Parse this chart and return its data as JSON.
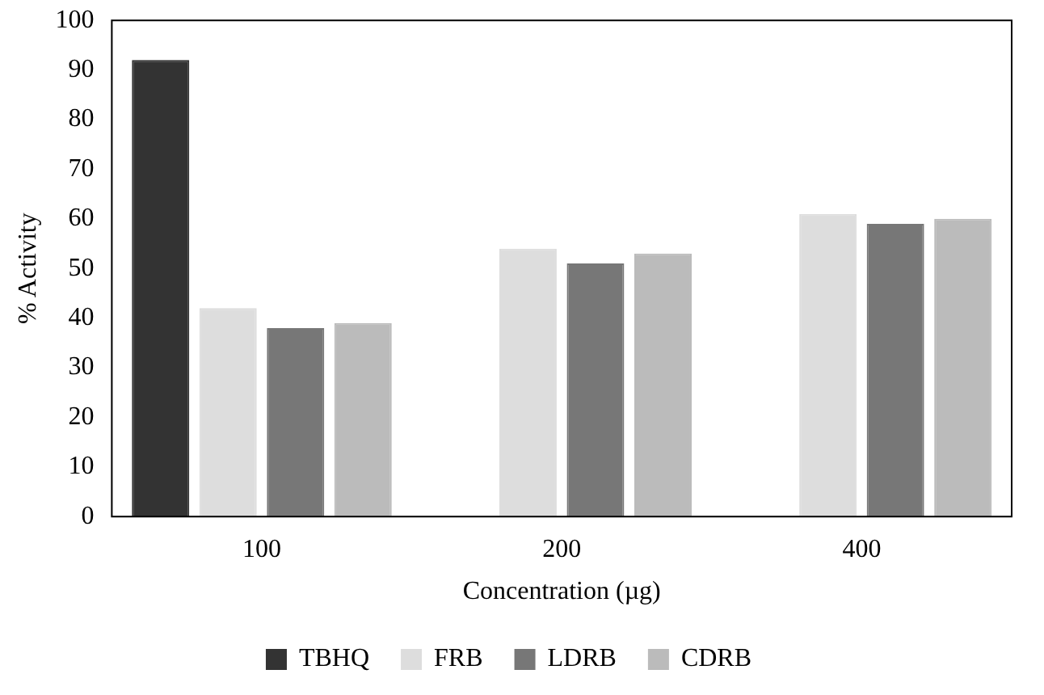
{
  "chart_data": {
    "type": "bar",
    "xlabel": "Concentration (µg)",
    "ylabel": "% Activity",
    "categories": [
      "100",
      "200",
      "400"
    ],
    "series": [
      {
        "name": "TBHQ",
        "color": "#333333",
        "values": [
          92,
          null,
          null
        ]
      },
      {
        "name": "FRB",
        "color": "#dddddd",
        "values": [
          42,
          54,
          61
        ]
      },
      {
        "name": "LDRB",
        "color": "#777777",
        "values": [
          38,
          51,
          59
        ]
      },
      {
        "name": "CDRB",
        "color": "#bbbbbb",
        "values": [
          39,
          53,
          60
        ]
      }
    ],
    "ylim": [
      0,
      100
    ],
    "yticks": [
      0,
      10,
      20,
      30,
      40,
      50,
      60,
      70,
      80,
      90,
      100
    ],
    "grid": false,
    "legend": "bottom"
  }
}
